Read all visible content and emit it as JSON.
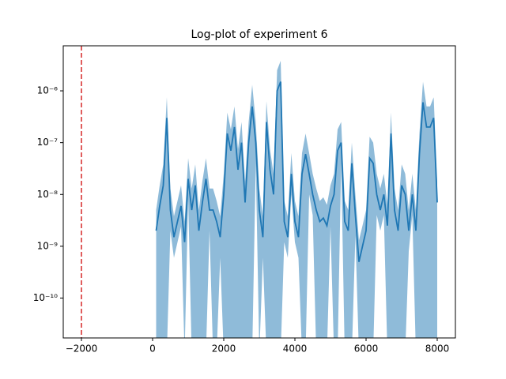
{
  "chart_data": {
    "type": "line",
    "title": "Log-plot of experiment 6",
    "yscale": "log",
    "xlim": [
      -2511,
      8511
    ],
    "ylim": [
      1.7e-11,
      7.4e-06
    ],
    "xticks": [
      {
        "value": -2000,
        "label": "−2000"
      },
      0,
      2000,
      4000,
      6000,
      8000
    ],
    "yticks": [
      {
        "value": 1e-10,
        "label": "10⁻¹⁰"
      },
      {
        "value": 1e-09,
        "label": "10⁻⁹"
      },
      {
        "value": 1e-08,
        "label": "10⁻⁸"
      },
      {
        "value": 1e-07,
        "label": "10⁻⁷"
      },
      {
        "value": 1e-06,
        "label": "10⁻⁶"
      }
    ],
    "vline": {
      "x": -2000,
      "color": "#d62728"
    },
    "x": [
      100,
      200,
      300,
      400,
      500,
      600,
      700,
      800,
      900,
      1000,
      1100,
      1200,
      1300,
      1400,
      1500,
      1600,
      1700,
      1800,
      1900,
      2000,
      2100,
      2200,
      2300,
      2400,
      2500,
      2600,
      2700,
      2800,
      2900,
      3000,
      3100,
      3200,
      3300,
      3400,
      3500,
      3600,
      3700,
      3800,
      3900,
      4000,
      4100,
      4200,
      4300,
      4400,
      4500,
      4600,
      4700,
      4800,
      4900,
      5000,
      5100,
      5200,
      5300,
      5400,
      5500,
      5600,
      5700,
      5800,
      5900,
      6000,
      6100,
      6200,
      6300,
      6400,
      6500,
      6600,
      6700,
      6800,
      6900,
      7000,
      7100,
      7200,
      7300,
      7400,
      7500,
      7600,
      7700,
      7800,
      7900,
      8000
    ],
    "series": [
      {
        "color": "#1f77b4",
        "values": [
          2e-09,
          6e-09,
          1.5e-08,
          3e-07,
          5e-09,
          1.5e-09,
          3e-09,
          6e-09,
          1.2e-09,
          2e-08,
          5e-09,
          1.5e-08,
          2e-09,
          7e-09,
          2e-08,
          5e-09,
          5e-09,
          3e-09,
          1.5e-09,
          1e-08,
          1.5e-07,
          7e-08,
          2e-07,
          3e-08,
          1e-07,
          7e-09,
          1e-07,
          5e-07,
          1e-07,
          5e-09,
          1.5e-09,
          2.5e-07,
          3e-08,
          1e-08,
          1e-06,
          1.5e-06,
          3e-09,
          1.5e-09,
          2.5e-08,
          3e-09,
          1.5e-09,
          2.5e-08,
          6e-08,
          2.5e-08,
          1e-08,
          5e-09,
          3e-09,
          3.5e-09,
          2.5e-09,
          6e-09,
          1e-08,
          7e-08,
          1e-07,
          3e-09,
          2e-09,
          4e-08,
          4e-09,
          5e-10,
          1e-09,
          2e-09,
          5e-08,
          4e-08,
          1e-08,
          5e-09,
          1e-08,
          2.5e-09,
          1.5e-07,
          5e-09,
          2e-09,
          1.5e-08,
          1e-08,
          2e-09,
          1e-08,
          2e-09,
          6e-08,
          6e-07,
          2e-07,
          2e-07,
          3e-07,
          7e-09
        ],
        "upper": [
          5e-09,
          1.5e-08,
          3.8e-08,
          7.5e-07,
          1.3e-08,
          3.8e-09,
          7.5e-09,
          1.5e-08,
          3e-09,
          5e-08,
          1.3e-08,
          3.8e-08,
          5e-09,
          1.8e-08,
          5e-08,
          1.3e-08,
          1.3e-08,
          7.5e-09,
          3.8e-09,
          2.5e-08,
          3.8e-07,
          1.8e-07,
          5e-07,
          7.5e-08,
          2.5e-07,
          1.8e-08,
          2.5e-07,
          1.3e-06,
          2.5e-07,
          1.3e-08,
          3.8e-09,
          6.3e-07,
          7.5e-08,
          2.5e-08,
          2.5e-06,
          3.8e-06,
          7.5e-09,
          3.8e-09,
          6.3e-08,
          7.5e-09,
          3.8e-09,
          6.3e-08,
          1.5e-07,
          6.3e-08,
          2.5e-08,
          1.3e-08,
          7.5e-09,
          8.8e-09,
          6.3e-09,
          1.5e-08,
          2.5e-08,
          1.8e-07,
          2.5e-07,
          7.5e-09,
          5e-09,
          1e-07,
          1e-08,
          1.3e-09,
          2.5e-09,
          5e-09,
          1.3e-07,
          1e-07,
          2.5e-08,
          1.3e-08,
          2.5e-08,
          6.3e-09,
          3.8e-07,
          1.3e-08,
          5e-09,
          3.8e-08,
          2.5e-08,
          5e-09,
          2.5e-08,
          5e-09,
          1.5e-07,
          1.5e-06,
          5e-07,
          5e-07,
          7.5e-07,
          1.8e-08
        ],
        "lower": [
          0,
          0,
          0,
          0,
          2e-09,
          6e-10,
          1.2e-09,
          2.4e-09,
          0,
          8e-09,
          0,
          0,
          0,
          0,
          0,
          2e-09,
          0,
          0,
          6e-10,
          0,
          0,
          0,
          0,
          0,
          0,
          0,
          0,
          0,
          4e-08,
          0,
          6e-10,
          0,
          0,
          0,
          0,
          0,
          1.2e-09,
          6e-10,
          1e-08,
          1.2e-09,
          6e-10,
          0,
          0,
          1e-08,
          4e-09,
          0,
          0,
          0,
          0,
          2.4e-09,
          0,
          0,
          4e-08,
          0,
          0,
          0,
          1.6e-09,
          0,
          0,
          0,
          0,
          0,
          4e-09,
          2e-09,
          4e-09,
          0,
          0,
          0,
          0,
          0,
          0,
          8e-10,
          4e-09,
          0,
          0,
          0,
          0,
          0,
          0,
          0
        ]
      }
    ]
  }
}
